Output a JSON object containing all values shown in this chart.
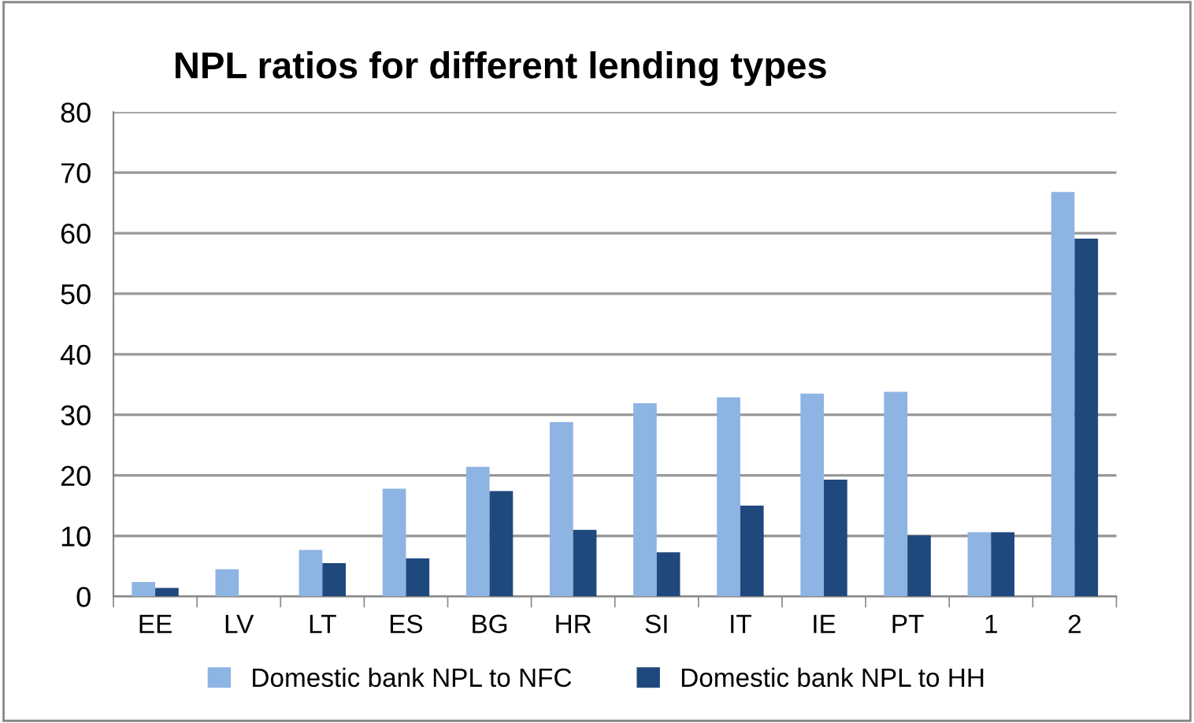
{
  "chart_data": {
    "type": "bar",
    "title": "NPL ratios for different lending types",
    "categories": [
      "EE",
      "LV",
      "LT",
      "ES",
      "BG",
      "HR",
      "SI",
      "IT",
      "IE",
      "PT",
      "1",
      "2"
    ],
    "series": [
      {
        "name": "Domestic bank NPL to NFC",
        "color": "#8eb4e3",
        "values": [
          2.4,
          4.5,
          7.7,
          17.8,
          21.4,
          28.8,
          31.9,
          32.9,
          33.5,
          33.8,
          10.6,
          66.8
        ]
      },
      {
        "name": "Domestic bank NPL to HH",
        "color": "#1f497d",
        "values": [
          1.4,
          null,
          5.5,
          6.3,
          17.4,
          11.0,
          7.3,
          15.0,
          19.3,
          10.1,
          10.6,
          59.1
        ]
      }
    ],
    "ylim": [
      0,
      80
    ],
    "yticks": [
      0,
      10,
      20,
      30,
      40,
      50,
      60,
      70,
      80
    ],
    "grid": "y",
    "legend": "bottom"
  }
}
